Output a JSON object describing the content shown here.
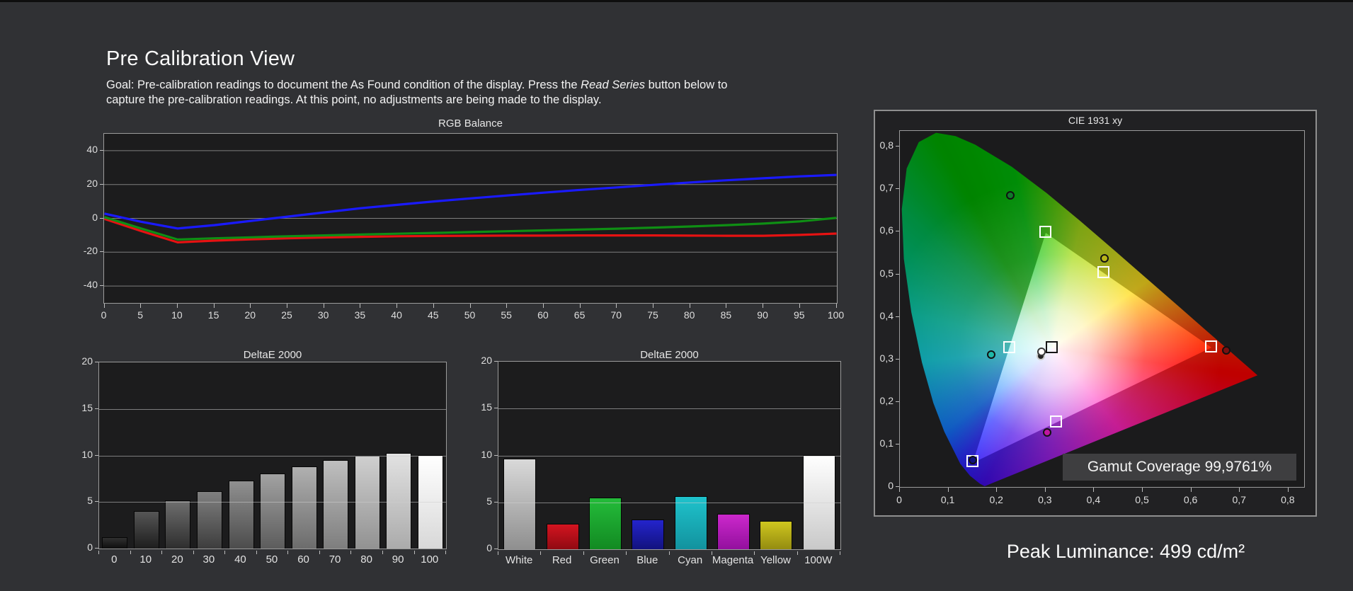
{
  "page": {
    "title": "Pre Calibration View",
    "goal": {
      "before_italic": "Goal: Pre-calibration readings to document the As Found condition of the display. Press the ",
      "italic": "Read Series",
      "after_italic": " button below to",
      "line2": "capture the pre-calibration readings. At this point, no adjustments are being made to the display."
    },
    "peak_luminance": "Peak Luminance: 499 cd/m²"
  },
  "chart_data": [
    {
      "id": "rgb_balance",
      "type": "line",
      "title": "RGB Balance",
      "x": [
        0,
        5,
        10,
        15,
        20,
        25,
        30,
        35,
        40,
        45,
        50,
        55,
        60,
        65,
        70,
        75,
        80,
        85,
        90,
        95,
        100
      ],
      "series": [
        {
          "name": "Red",
          "color": "#e61212",
          "values": [
            -0.3,
            -7.5,
            -14.2,
            -13.2,
            -12.4,
            -11.8,
            -11.3,
            -10.9,
            -10.6,
            -10.4,
            -10.3,
            -10.2,
            -10.2,
            -10.1,
            -10.1,
            -10.1,
            -10.2,
            -10.3,
            -10.3,
            -9.8,
            -9.0
          ]
        },
        {
          "name": "Green",
          "color": "#0f8f14",
          "values": [
            0.7,
            -6.0,
            -12.5,
            -11.8,
            -11.2,
            -10.6,
            -10.1,
            -9.6,
            -9.1,
            -8.6,
            -8.1,
            -7.6,
            -7.1,
            -6.6,
            -6.1,
            -5.5,
            -4.8,
            -4.0,
            -3.1,
            -1.8,
            0.3
          ]
        },
        {
          "name": "Blue",
          "color": "#1a1aff",
          "values": [
            2.8,
            -2.0,
            -6.0,
            -4.0,
            -1.5,
            1.0,
            3.5,
            6.0,
            8.0,
            10.0,
            11.8,
            13.5,
            15.2,
            16.8,
            18.3,
            19.8,
            21.2,
            22.5,
            23.7,
            24.8,
            25.7
          ]
        }
      ],
      "ylim": [
        -50,
        50
      ],
      "yticks": [
        40,
        20,
        0,
        -20,
        -40
      ],
      "x_tick_labels": [
        "0",
        "5",
        "10",
        "15",
        "20",
        "25",
        "30",
        "35",
        "40",
        "45",
        "50",
        "55",
        "60",
        "65",
        "70",
        "75",
        "80",
        "85",
        "90",
        "95",
        "100"
      ],
      "grid": true,
      "legend": "none"
    },
    {
      "id": "deltae_grayscale",
      "type": "bar",
      "title": "DeltaE 2000",
      "categories": [
        "0",
        "10",
        "20",
        "30",
        "40",
        "50",
        "60",
        "70",
        "80",
        "90",
        "100"
      ],
      "values": [
        1.2,
        4.0,
        5.2,
        6.2,
        7.3,
        8.1,
        8.8,
        9.5,
        10.0,
        10.25,
        10.05
      ],
      "colors": [
        [
          "#303030",
          "#0e0e0e"
        ],
        [
          "#565656",
          "#1d1d1d"
        ],
        [
          "#6e6e6e",
          "#2e2e2e"
        ],
        [
          "#808080",
          "#3d3d3d"
        ],
        [
          "#909090",
          "#4c4c4c"
        ],
        [
          "#a2a2a2",
          "#5c5c5c"
        ],
        [
          "#b0b0b0",
          "#6c6c6c"
        ],
        [
          "#bfbfbf",
          "#7e7e7e"
        ],
        [
          "#cfcfcf",
          "#929292"
        ],
        [
          "#e2e2e2",
          "#ababab"
        ],
        [
          "#ffffff",
          "#d8d8d8"
        ]
      ],
      "ylim": [
        0,
        20
      ],
      "yticks": [
        0,
        5,
        10,
        15,
        20
      ],
      "grid": true
    },
    {
      "id": "deltae_colors",
      "type": "bar",
      "title": "DeltaE 2000",
      "categories": [
        "White",
        "Red",
        "Green",
        "Blue",
        "Cyan",
        "Magenta",
        "Yellow",
        "100W"
      ],
      "values": [
        9.7,
        2.7,
        5.5,
        3.2,
        5.7,
        3.8,
        3.0,
        10.05
      ],
      "colors": [
        [
          "#d9d9d9",
          "#8f8f8f"
        ],
        [
          "#d41420",
          "#8f0a12"
        ],
        [
          "#24bc3a",
          "#128a22"
        ],
        [
          "#2424cc",
          "#12127e"
        ],
        [
          "#1fc3cc",
          "#12929e"
        ],
        [
          "#cc28cc",
          "#93109e"
        ],
        [
          "#cfc61f",
          "#948c10"
        ],
        [
          "#ffffff",
          "#c9c9c9"
        ]
      ],
      "ylim": [
        0,
        20
      ],
      "yticks": [
        0,
        5,
        10,
        15,
        20
      ],
      "grid": true
    },
    {
      "id": "cie_1931",
      "type": "scatter",
      "title": "CIE 1931 xy",
      "gamut_coverage_label": "Gamut Coverage 99,9761%",
      "xlim": [
        0,
        0.833
      ],
      "ylim": [
        0,
        0.837
      ],
      "x_ticks": [
        {
          "v": 0,
          "label": "0"
        },
        {
          "v": 0.1,
          "label": "0,1"
        },
        {
          "v": 0.2,
          "label": "0,2"
        },
        {
          "v": 0.3,
          "label": "0,3"
        },
        {
          "v": 0.4,
          "label": "0,4"
        },
        {
          "v": 0.5,
          "label": "0,5"
        },
        {
          "v": 0.6,
          "label": "0,6"
        },
        {
          "v": 0.7,
          "label": "0,7"
        },
        {
          "v": 0.8,
          "label": "0,8"
        }
      ],
      "y_ticks": [
        {
          "v": 0,
          "label": "0"
        },
        {
          "v": 0.1,
          "label": "0,1"
        },
        {
          "v": 0.2,
          "label": "0,2"
        },
        {
          "v": 0.3,
          "label": "0,3"
        },
        {
          "v": 0.4,
          "label": "0,4"
        },
        {
          "v": 0.5,
          "label": "0,5"
        },
        {
          "v": 0.6,
          "label": "0,6"
        },
        {
          "v": 0.7,
          "label": "0,7"
        },
        {
          "v": 0.8,
          "label": "0,8"
        }
      ],
      "target_gamut_triangle": {
        "red": [
          0.64,
          0.33
        ],
        "green": [
          0.3,
          0.6
        ],
        "blue": [
          0.15,
          0.06
        ]
      },
      "targets": [
        {
          "name": "red-target",
          "x": 0.64,
          "y": 0.33
        },
        {
          "name": "green-target",
          "x": 0.3,
          "y": 0.6
        },
        {
          "name": "blue-target",
          "x": 0.15,
          "y": 0.06
        },
        {
          "name": "cyan-target",
          "x": 0.225,
          "y": 0.329
        },
        {
          "name": "magenta-target",
          "x": 0.321,
          "y": 0.154
        },
        {
          "name": "yellow-target",
          "x": 0.419,
          "y": 0.505
        },
        {
          "name": "white-target",
          "x": 0.3127,
          "y": 0.329,
          "border": "#151515"
        }
      ],
      "measurements": [
        {
          "name": "red-measured",
          "x": 0.672,
          "y": 0.322,
          "fill": "#7a1010"
        },
        {
          "name": "green-measured",
          "x": 0.228,
          "y": 0.685,
          "fill": "#0f7a2a"
        },
        {
          "name": "blue-measured",
          "x": 0.15,
          "y": 0.063,
          "fill": "#101080"
        },
        {
          "name": "cyan-measured",
          "x": 0.188,
          "y": 0.312,
          "fill": "#1fb8a8"
        },
        {
          "name": "magenta-measured",
          "x": 0.303,
          "y": 0.128,
          "fill": "#c018a0"
        },
        {
          "name": "yellow-measured",
          "x": 0.421,
          "y": 0.537,
          "fill": "#b8b418"
        },
        {
          "name": "white-measured-2",
          "x": 0.29,
          "y": 0.308,
          "fill": "#242424",
          "stroke": "#cccccc"
        },
        {
          "name": "white-measured",
          "x": 0.291,
          "y": 0.318,
          "fill": "#ffffff",
          "stroke": "#3a3a3a"
        }
      ]
    }
  ]
}
